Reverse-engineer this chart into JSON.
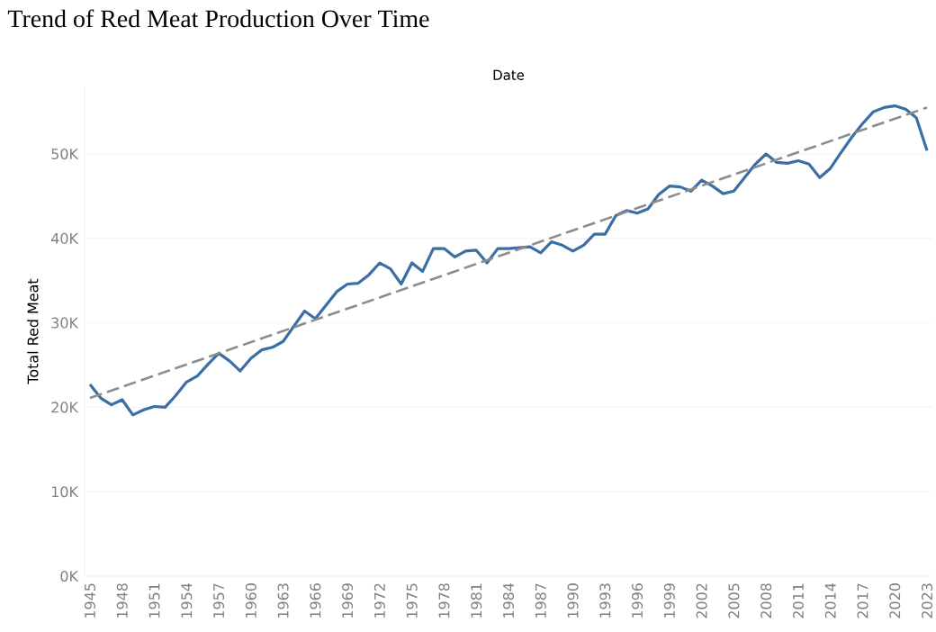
{
  "chart_data": {
    "type": "line",
    "title": "Trend of Red Meat Production Over Time",
    "xlabel": "Date",
    "ylabel": "Total Red Meat",
    "x": [
      1945,
      1946,
      1947,
      1948,
      1949,
      1950,
      1951,
      1952,
      1953,
      1954,
      1955,
      1956,
      1957,
      1958,
      1959,
      1960,
      1961,
      1962,
      1963,
      1964,
      1965,
      1966,
      1967,
      1968,
      1969,
      1970,
      1971,
      1972,
      1973,
      1974,
      1975,
      1976,
      1977,
      1978,
      1979,
      1980,
      1981,
      1982,
      1983,
      1984,
      1985,
      1986,
      1987,
      1988,
      1989,
      1990,
      1991,
      1992,
      1993,
      1994,
      1995,
      1996,
      1997,
      1998,
      1999,
      2000,
      2001,
      2002,
      2003,
      2004,
      2005,
      2006,
      2007,
      2008,
      2009,
      2010,
      2011,
      2012,
      2013,
      2014,
      2015,
      2016,
      2017,
      2018,
      2019,
      2020,
      2021,
      2022,
      2023
    ],
    "series": [
      {
        "color": "#3a6fa5",
        "values": [
          22700,
          21100,
          20300,
          20900,
          19100,
          19700,
          20100,
          20000,
          21400,
          23000,
          23700,
          25100,
          26400,
          25500,
          24300,
          25800,
          26800,
          27100,
          27800,
          29600,
          31400,
          30500,
          32100,
          33700,
          34600,
          34700,
          35700,
          37100,
          36400,
          34600,
          37100,
          36100,
          38800,
          38800,
          37800,
          38500,
          38600,
          37100,
          38800,
          38800,
          38900,
          39000,
          38300,
          39600,
          39200,
          38500,
          39200,
          40500,
          40500,
          42700,
          43300,
          43000,
          43500,
          45200,
          46200,
          46100,
          45600,
          46900,
          46200,
          45300,
          45600,
          47200,
          48800,
          50000,
          49000,
          48900,
          49200,
          48800,
          47200,
          48300,
          50200,
          52000,
          53600,
          55000,
          55500,
          55700,
          55300,
          54300,
          50400
        ]
      },
      {
        "type": "line",
        "color": "#8c8c8c",
        "line_style": "dashed",
        "x": [
          1945,
          2023
        ],
        "values": [
          21100,
          55500
        ]
      }
    ],
    "xlim": [
      1944.5,
      2023.5
    ],
    "ylim": [
      0,
      58000
    ],
    "xticks": [
      1945,
      1948,
      1951,
      1954,
      1957,
      1960,
      1963,
      1966,
      1969,
      1972,
      1975,
      1978,
      1981,
      1984,
      1987,
      1990,
      1993,
      1996,
      1999,
      2002,
      2005,
      2008,
      2011,
      2014,
      2017,
      2020,
      2023
    ],
    "yticks": [
      {
        "value": 0,
        "label": "0K"
      },
      {
        "value": 10000,
        "label": "10K"
      },
      {
        "value": 20000,
        "label": "20K"
      },
      {
        "value": 30000,
        "label": "30K"
      },
      {
        "value": 40000,
        "label": "40K"
      },
      {
        "value": 50000,
        "label": "50K"
      }
    ],
    "grid": "y",
    "marker": "none",
    "line_style": "solid"
  }
}
